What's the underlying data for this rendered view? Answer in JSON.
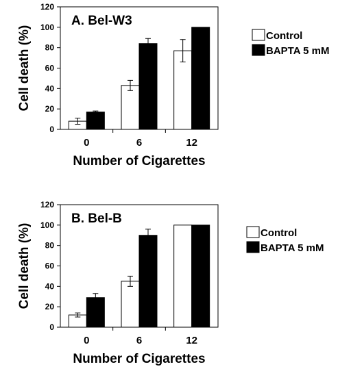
{
  "chart_data": [
    {
      "type": "bar",
      "title": "A. Bel-W3",
      "xlabel": "Number of Cigarettes",
      "ylabel": "Cell death (%)",
      "ylim": [
        0,
        120
      ],
      "yticks": [
        0,
        20,
        40,
        60,
        80,
        100,
        120
      ],
      "categories": [
        "0",
        "6",
        "12"
      ],
      "legend_position": "right",
      "series": [
        {
          "name": "Control",
          "color": "#ffffff",
          "values": [
            8,
            43,
            77
          ],
          "errors": [
            3,
            5,
            11
          ]
        },
        {
          "name": "BAPTA 5 mM",
          "color": "#000000",
          "values": [
            17,
            84,
            100
          ],
          "errors": [
            1,
            5,
            0
          ]
        }
      ]
    },
    {
      "type": "bar",
      "title": "B. Bel-B",
      "xlabel": "Number of Cigarettes",
      "ylabel": "Cell death (%)",
      "ylim": [
        0,
        120
      ],
      "yticks": [
        0,
        20,
        40,
        60,
        80,
        100,
        120
      ],
      "categories": [
        "0",
        "6",
        "12"
      ],
      "legend_position": "right",
      "series": [
        {
          "name": "Control",
          "color": "#ffffff",
          "values": [
            12,
            45,
            100
          ],
          "errors": [
            2,
            5,
            0
          ]
        },
        {
          "name": "BAPTA 5 mM",
          "color": "#000000",
          "values": [
            29,
            90,
            100
          ],
          "errors": [
            4,
            6,
            0
          ]
        }
      ]
    }
  ]
}
